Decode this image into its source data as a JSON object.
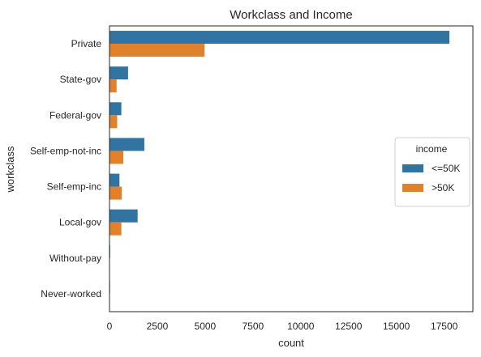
{
  "chart_data": {
    "type": "bar",
    "orientation": "horizontal",
    "title": "Workclass and Income",
    "xlabel": "count",
    "ylabel": "workclass",
    "categories": [
      "Private",
      "State-gov",
      "Federal-gov",
      "Self-emp-not-inc",
      "Self-emp-inc",
      "Local-gov",
      "Without-pay",
      "Never-worked"
    ],
    "series": [
      {
        "name": "<=50K",
        "color": "#3274a1",
        "values": [
          17750,
          950,
          600,
          1800,
          500,
          1450,
          15,
          7
        ]
      },
      {
        "name": ">50K",
        "color": "#e1812c",
        "values": [
          4950,
          350,
          380,
          700,
          620,
          600,
          0,
          0
        ]
      }
    ],
    "xlim": [
      0,
      19000
    ],
    "xticks": [
      0,
      2500,
      5000,
      7500,
      10000,
      12500,
      15000,
      17500
    ],
    "xtick_labels": [
      "0",
      "2500",
      "5000",
      "7500",
      "10000",
      "12500",
      "15000",
      "17500"
    ],
    "legend": {
      "title": "income",
      "placement": "center-right"
    },
    "grid": false
  }
}
